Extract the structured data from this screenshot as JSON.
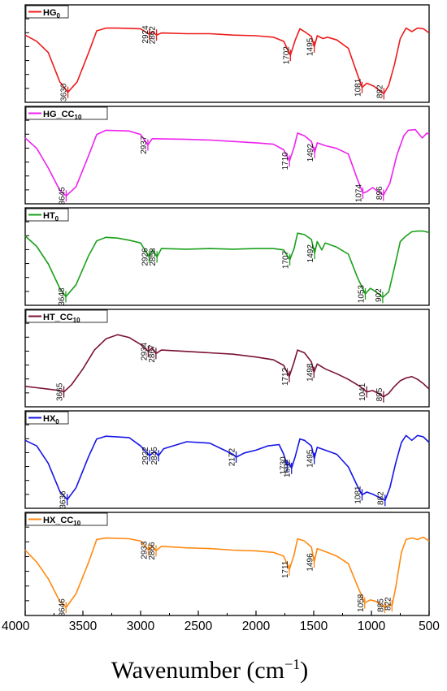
{
  "chart_data": {
    "type": "line",
    "xlabel": "Wavenumber (cm−1)",
    "x_ticks": [
      4000,
      3500,
      3000,
      2500,
      2000,
      1500,
      1000,
      500
    ],
    "xlim": [
      4000,
      500
    ],
    "x_reversed": true,
    "grid": false,
    "panels": [
      {
        "name": "HG0",
        "legend": {
          "main": "HG",
          "sub": "0"
        },
        "color": "#ee1b1b",
        "points": [
          [
            4000,
            0.87
          ],
          [
            3900,
            0.78
          ],
          [
            3800,
            0.62
          ],
          [
            3700,
            0.2
          ],
          [
            3630,
            0.05
          ],
          [
            3550,
            0.2
          ],
          [
            3450,
            0.62
          ],
          [
            3380,
            0.93
          ],
          [
            3300,
            0.97
          ],
          [
            3200,
            0.97
          ],
          [
            3000,
            0.96
          ],
          [
            2924,
            0.88
          ],
          [
            2900,
            0.92
          ],
          [
            2862,
            0.87
          ],
          [
            2820,
            0.9
          ],
          [
            2600,
            0.89
          ],
          [
            2400,
            0.89
          ],
          [
            2200,
            0.87
          ],
          [
            2000,
            0.86
          ],
          [
            1850,
            0.84
          ],
          [
            1760,
            0.78
          ],
          [
            1702,
            0.58
          ],
          [
            1660,
            0.8
          ],
          [
            1620,
            0.96
          ],
          [
            1580,
            0.92
          ],
          [
            1520,
            0.85
          ],
          [
            1495,
            0.7
          ],
          [
            1470,
            0.86
          ],
          [
            1420,
            0.82
          ],
          [
            1380,
            0.84
          ],
          [
            1300,
            0.8
          ],
          [
            1200,
            0.68
          ],
          [
            1120,
            0.3
          ],
          [
            1081,
            0.12
          ],
          [
            1040,
            0.18
          ],
          [
            980,
            0.14
          ],
          [
            920,
            0.06
          ],
          [
            892,
            0.03
          ],
          [
            850,
            0.15
          ],
          [
            800,
            0.45
          ],
          [
            750,
            0.82
          ],
          [
            700,
            0.97
          ],
          [
            650,
            0.92
          ],
          [
            600,
            0.97
          ],
          [
            550,
            0.96
          ],
          [
            500,
            0.9
          ]
        ],
        "peaks": [
          3630,
          2924,
          2862,
          1702,
          1495,
          1081,
          892
        ]
      },
      {
        "name": "HG_CC10",
        "legend": {
          "main": "HG_CC",
          "sub": "10"
        },
        "color": "#ee22ee",
        "points": [
          [
            4000,
            0.85
          ],
          [
            3900,
            0.7
          ],
          [
            3800,
            0.42
          ],
          [
            3700,
            0.1
          ],
          [
            3645,
            0.02
          ],
          [
            3560,
            0.15
          ],
          [
            3450,
            0.6
          ],
          [
            3380,
            0.9
          ],
          [
            3300,
            0.96
          ],
          [
            3100,
            0.95
          ],
          [
            3000,
            0.9
          ],
          [
            2937,
            0.75
          ],
          [
            2900,
            0.84
          ],
          [
            2600,
            0.83
          ],
          [
            2400,
            0.82
          ],
          [
            2200,
            0.8
          ],
          [
            2000,
            0.78
          ],
          [
            1850,
            0.76
          ],
          [
            1760,
            0.68
          ],
          [
            1710,
            0.52
          ],
          [
            1670,
            0.72
          ],
          [
            1640,
            0.92
          ],
          [
            1580,
            0.88
          ],
          [
            1520,
            0.8
          ],
          [
            1492,
            0.64
          ],
          [
            1470,
            0.78
          ],
          [
            1400,
            0.74
          ],
          [
            1300,
            0.7
          ],
          [
            1200,
            0.62
          ],
          [
            1120,
            0.25
          ],
          [
            1074,
            0.06
          ],
          [
            1040,
            0.08
          ],
          [
            990,
            0.14
          ],
          [
            940,
            0.08
          ],
          [
            896,
            0.03
          ],
          [
            840,
            0.2
          ],
          [
            780,
            0.6
          ],
          [
            720,
            0.88
          ],
          [
            680,
            0.96
          ],
          [
            620,
            0.97
          ],
          [
            560,
            0.85
          ],
          [
            520,
            0.92
          ],
          [
            500,
            0.9
          ]
        ],
        "peaks": [
          3645,
          2937,
          1710,
          1492,
          1074,
          896
        ]
      },
      {
        "name": "HT0",
        "legend": {
          "main": "HT",
          "sub": "0"
        },
        "color": "#1aa01a",
        "points": [
          [
            4000,
            0.9
          ],
          [
            3900,
            0.75
          ],
          [
            3800,
            0.5
          ],
          [
            3700,
            0.15
          ],
          [
            3648,
            0.03
          ],
          [
            3560,
            0.2
          ],
          [
            3450,
            0.62
          ],
          [
            3380,
            0.83
          ],
          [
            3300,
            0.88
          ],
          [
            3200,
            0.87
          ],
          [
            3100,
            0.84
          ],
          [
            3000,
            0.8
          ],
          [
            2926,
            0.6
          ],
          [
            2895,
            0.7
          ],
          [
            2858,
            0.6
          ],
          [
            2820,
            0.72
          ],
          [
            2600,
            0.71
          ],
          [
            2400,
            0.72
          ],
          [
            2200,
            0.71
          ],
          [
            2000,
            0.72
          ],
          [
            1850,
            0.72
          ],
          [
            1760,
            0.7
          ],
          [
            1707,
            0.56
          ],
          [
            1670,
            0.72
          ],
          [
            1640,
            0.94
          ],
          [
            1580,
            0.92
          ],
          [
            1520,
            0.85
          ],
          [
            1492,
            0.65
          ],
          [
            1470,
            0.82
          ],
          [
            1430,
            0.7
          ],
          [
            1400,
            0.8
          ],
          [
            1300,
            0.74
          ],
          [
            1200,
            0.64
          ],
          [
            1120,
            0.3
          ],
          [
            1053,
            0.07
          ],
          [
            1010,
            0.15
          ],
          [
            960,
            0.1
          ],
          [
            902,
            0.02
          ],
          [
            850,
            0.1
          ],
          [
            800,
            0.45
          ],
          [
            750,
            0.82
          ],
          [
            700,
            0.9
          ],
          [
            650,
            0.96
          ],
          [
            600,
            0.97
          ],
          [
            550,
            0.97
          ],
          [
            500,
            0.95
          ]
        ],
        "peaks": [
          3648,
          2926,
          2858,
          1707,
          1492,
          1053,
          902
        ]
      },
      {
        "name": "HT_CC10",
        "legend": {
          "main": "HT_CC",
          "sub": "10"
        },
        "color": "#7a1236",
        "points": [
          [
            4000,
            0.2
          ],
          [
            3900,
            0.18
          ],
          [
            3800,
            0.16
          ],
          [
            3700,
            0.14
          ],
          [
            3665,
            0.12
          ],
          [
            3600,
            0.22
          ],
          [
            3500,
            0.45
          ],
          [
            3400,
            0.72
          ],
          [
            3300,
            0.88
          ],
          [
            3200,
            0.94
          ],
          [
            3100,
            0.9
          ],
          [
            3000,
            0.8
          ],
          [
            2934,
            0.7
          ],
          [
            2900,
            0.75
          ],
          [
            2867,
            0.67
          ],
          [
            2820,
            0.72
          ],
          [
            2600,
            0.7
          ],
          [
            2400,
            0.68
          ],
          [
            2200,
            0.66
          ],
          [
            2000,
            0.62
          ],
          [
            1850,
            0.58
          ],
          [
            1760,
            0.5
          ],
          [
            1712,
            0.34
          ],
          [
            1670,
            0.55
          ],
          [
            1640,
            0.72
          ],
          [
            1580,
            0.68
          ],
          [
            1520,
            0.55
          ],
          [
            1498,
            0.4
          ],
          [
            1470,
            0.52
          ],
          [
            1400,
            0.45
          ],
          [
            1300,
            0.38
          ],
          [
            1200,
            0.3
          ],
          [
            1100,
            0.2
          ],
          [
            1041,
            0.12
          ],
          [
            990,
            0.14
          ],
          [
            940,
            0.1
          ],
          [
            895,
            0.05
          ],
          [
            850,
            0.1
          ],
          [
            800,
            0.2
          ],
          [
            750,
            0.28
          ],
          [
            700,
            0.32
          ],
          [
            650,
            0.34
          ],
          [
            600,
            0.3
          ],
          [
            550,
            0.24
          ],
          [
            500,
            0.16
          ]
        ],
        "peaks": [
          3665,
          2934,
          2867,
          1712,
          1498,
          1041,
          895
        ]
      },
      {
        "name": "HX0",
        "legend": {
          "main": "HX",
          "sub": "0"
        },
        "color": "#1515e6",
        "points": [
          [
            4000,
            0.88
          ],
          [
            3900,
            0.8
          ],
          [
            3800,
            0.55
          ],
          [
            3700,
            0.15
          ],
          [
            3636,
            0.03
          ],
          [
            3560,
            0.2
          ],
          [
            3450,
            0.65
          ],
          [
            3380,
            0.9
          ],
          [
            3300,
            0.94
          ],
          [
            3100,
            0.92
          ],
          [
            3000,
            0.8
          ],
          [
            2922,
            0.66
          ],
          [
            2880,
            0.72
          ],
          [
            2845,
            0.66
          ],
          [
            2800,
            0.76
          ],
          [
            2600,
            0.86
          ],
          [
            2400,
            0.84
          ],
          [
            2300,
            0.76
          ],
          [
            2200,
            0.68
          ],
          [
            2172,
            0.64
          ],
          [
            2100,
            0.7
          ],
          [
            2000,
            0.74
          ],
          [
            1900,
            0.8
          ],
          [
            1800,
            0.82
          ],
          [
            1760,
            0.68
          ],
          [
            1730,
            0.52
          ],
          [
            1710,
            0.55
          ],
          [
            1692,
            0.48
          ],
          [
            1660,
            0.65
          ],
          [
            1620,
            0.9
          ],
          [
            1580,
            0.88
          ],
          [
            1520,
            0.8
          ],
          [
            1495,
            0.62
          ],
          [
            1470,
            0.78
          ],
          [
            1400,
            0.74
          ],
          [
            1300,
            0.68
          ],
          [
            1200,
            0.5
          ],
          [
            1120,
            0.22
          ],
          [
            1081,
            0.1
          ],
          [
            1040,
            0.14
          ],
          [
            990,
            0.11
          ],
          [
            940,
            0.07
          ],
          [
            882,
            0.02
          ],
          [
            840,
            0.2
          ],
          [
            790,
            0.55
          ],
          [
            740,
            0.85
          ],
          [
            700,
            0.95
          ],
          [
            650,
            0.88
          ],
          [
            600,
            0.95
          ],
          [
            550,
            0.93
          ],
          [
            500,
            0.85
          ]
        ],
        "peaks": [
          3636,
          2922,
          2845,
          2172,
          1730,
          1692,
          1495,
          1081,
          882
        ]
      },
      {
        "name": "HX_CC10",
        "legend": {
          "main": "HX_CC",
          "sub": "10"
        },
        "color": "#ff8a12",
        "points": [
          [
            4000,
            0.78
          ],
          [
            3900,
            0.62
          ],
          [
            3800,
            0.4
          ],
          [
            3700,
            0.1
          ],
          [
            3646,
            0.02
          ],
          [
            3560,
            0.2
          ],
          [
            3450,
            0.62
          ],
          [
            3380,
            0.92
          ],
          [
            3300,
            0.94
          ],
          [
            3100,
            0.93
          ],
          [
            3000,
            0.9
          ],
          [
            2933,
            0.78
          ],
          [
            2900,
            0.83
          ],
          [
            2866,
            0.77
          ],
          [
            2820,
            0.83
          ],
          [
            2600,
            0.81
          ],
          [
            2400,
            0.8
          ],
          [
            2200,
            0.78
          ],
          [
            2000,
            0.77
          ],
          [
            1850,
            0.75
          ],
          [
            1760,
            0.7
          ],
          [
            1711,
            0.52
          ],
          [
            1670,
            0.72
          ],
          [
            1640,
            0.93
          ],
          [
            1580,
            0.9
          ],
          [
            1520,
            0.82
          ],
          [
            1496,
            0.62
          ],
          [
            1470,
            0.8
          ],
          [
            1400,
            0.76
          ],
          [
            1300,
            0.7
          ],
          [
            1200,
            0.6
          ],
          [
            1120,
            0.3
          ],
          [
            1058,
            0.08
          ],
          [
            1010,
            0.12
          ],
          [
            960,
            0.1
          ],
          [
            885,
            0.02
          ],
          [
            840,
            0.06
          ],
          [
            822,
            0.04
          ],
          [
            790,
            0.28
          ],
          [
            740,
            0.75
          ],
          [
            700,
            0.92
          ],
          [
            650,
            0.94
          ],
          [
            600,
            0.92
          ],
          [
            550,
            0.95
          ],
          [
            500,
            0.9
          ]
        ],
        "peaks": [
          3646,
          2933,
          2866,
          1711,
          1496,
          1058,
          885,
          822
        ]
      }
    ]
  }
}
